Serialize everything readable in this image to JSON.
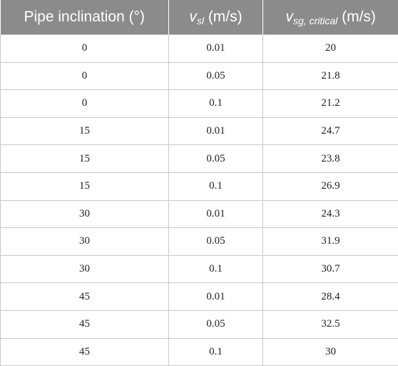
{
  "table": {
    "headers": {
      "col1": "Pipe inclination (°)",
      "col2_var": "v",
      "col2_sub": "sl",
      "col2_unit": " (m/s)",
      "col3_var": "v",
      "col3_sub": "sg, critical",
      "col3_unit": " (m/s)"
    },
    "rows": [
      [
        "0",
        "0.01",
        "20"
      ],
      [
        "0",
        "0.05",
        "21.8"
      ],
      [
        "0",
        "0.1",
        "21.2"
      ],
      [
        "15",
        "0.01",
        "24.7"
      ],
      [
        "15",
        "0.05",
        "23.8"
      ],
      [
        "15",
        "0.1",
        "26.9"
      ],
      [
        "30",
        "0.01",
        "24.3"
      ],
      [
        "30",
        "0.05",
        "31.9"
      ],
      [
        "30",
        "0.1",
        "30.7"
      ],
      [
        "45",
        "0.01",
        "28.4"
      ],
      [
        "45",
        "0.05",
        "32.5"
      ],
      [
        "45",
        "0.1",
        "30"
      ]
    ]
  }
}
